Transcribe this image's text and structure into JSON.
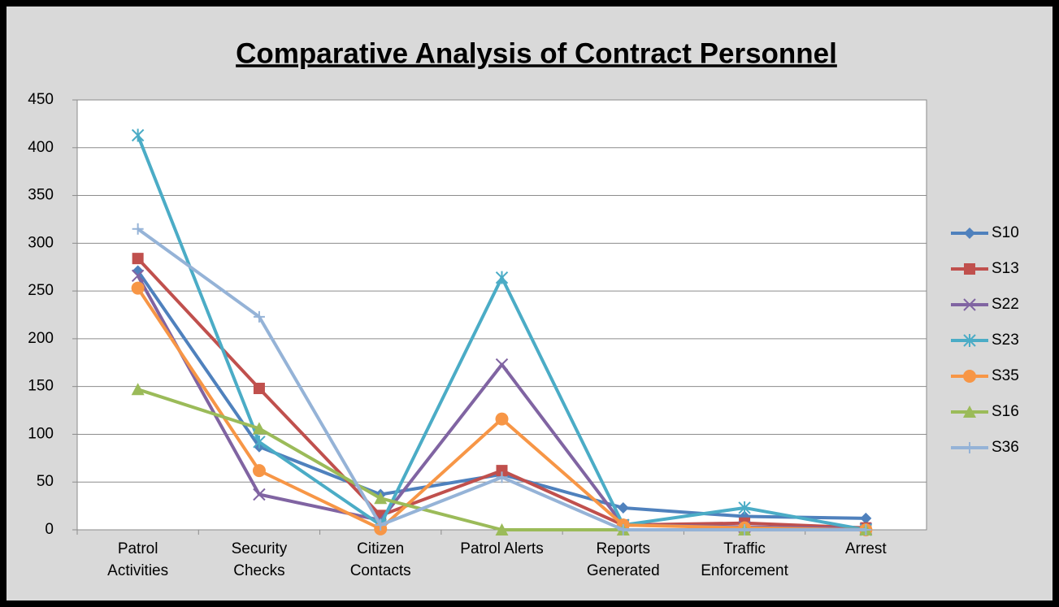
{
  "chart_data": {
    "type": "line",
    "title": "Comparative Analysis of Contract Personnel",
    "categories": [
      "Patrol Activities",
      "Security Checks",
      "Citizen Contacts",
      "Patrol Alerts",
      "Reports Generated",
      "Traffic Enforcement",
      "Arrest"
    ],
    "ylim": [
      0,
      450
    ],
    "yticks": [
      0,
      50,
      100,
      150,
      200,
      250,
      300,
      350,
      400,
      450
    ],
    "grid": true,
    "legend": "right",
    "series": [
      {
        "name": "S10",
        "color": "#4f81bd",
        "marker": "diamond",
        "values": [
          271,
          87,
          37,
          58,
          23,
          14,
          12
        ]
      },
      {
        "name": "S13",
        "color": "#c0504d",
        "marker": "square",
        "values": [
          284,
          148,
          15,
          62,
          5,
          7,
          2
        ]
      },
      {
        "name": "S22",
        "color": "#8064a2",
        "marker": "x",
        "values": [
          266,
          37,
          10,
          173,
          5,
          3,
          1
        ]
      },
      {
        "name": "S23",
        "color": "#4bacc6",
        "marker": "star",
        "values": [
          413,
          92,
          5,
          264,
          5,
          23,
          0
        ]
      },
      {
        "name": "S35",
        "color": "#f79646",
        "marker": "circle",
        "values": [
          253,
          62,
          1,
          116,
          5,
          2,
          0
        ]
      },
      {
        "name": "S16",
        "color": "#9bbb59",
        "marker": "triangle",
        "values": [
          147,
          106,
          33,
          0,
          0,
          0,
          0
        ]
      },
      {
        "name": "S36",
        "color": "#95b3d7",
        "marker": "plus",
        "values": [
          315,
          223,
          5,
          55,
          0,
          0,
          0
        ]
      }
    ]
  }
}
